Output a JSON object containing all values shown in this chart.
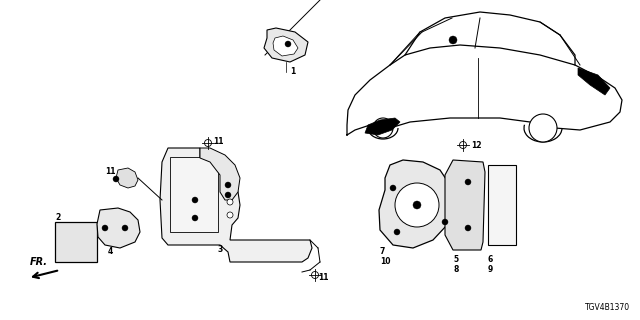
{
  "background_color": "#ffffff",
  "diagram_code": "TGV4B1370",
  "figsize": [
    6.4,
    3.2
  ],
  "dpi": 100
}
